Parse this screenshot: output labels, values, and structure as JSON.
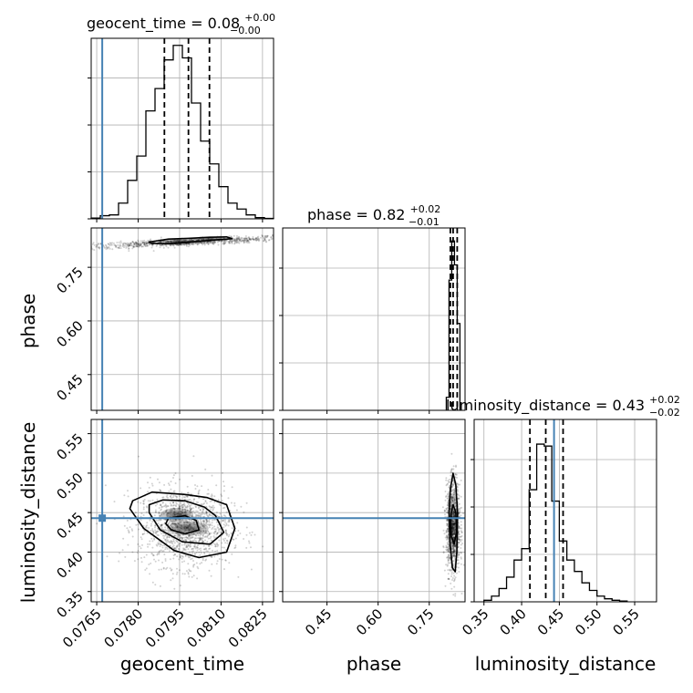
{
  "chart_data": {
    "type": "corner",
    "parameters": [
      "geocent_time",
      "phase",
      "luminosity_distance"
    ],
    "truths": {
      "geocent_time": 0.0767,
      "phase": null,
      "luminosity_distance": 0.443
    },
    "colors": {
      "truth": "#4682b4",
      "hist": "#000000",
      "grid": "#b0b0b0",
      "points": "#000000"
    },
    "diagonal": [
      {
        "parameter": "geocent_time",
        "title": "geocent_time = 0.08",
        "title_sup": "+0.00",
        "title_sub": "−0.00",
        "xlim": [
          0.0763,
          0.0829
        ],
        "bin_edges": [
          0.0763,
          0.07663,
          0.07696,
          0.07729,
          0.07762,
          0.07795,
          0.07828,
          0.07861,
          0.07894,
          0.07927,
          0.0796,
          0.07993,
          0.08026,
          0.08059,
          0.08092,
          0.08125,
          0.08158,
          0.08191,
          0.08224,
          0.08257,
          0.0829
        ],
        "counts": [
          0.2,
          0.8,
          1.0,
          4.0,
          9.8,
          16.0,
          27.5,
          33.2,
          40.5,
          44.2,
          41.0,
          29.5,
          19.8,
          14.0,
          8.2,
          4.0,
          2.5,
          1.0,
          0.3,
          0.1
        ],
        "ylim": [
          0,
          46
        ],
        "quantiles": [
          0.07895,
          0.07982,
          0.08058
        ]
      },
      {
        "parameter": "phase",
        "title": "phase = 0.82",
        "title_sup": "+0.02",
        "title_sub": "−0.01",
        "xlim": [
          0.32,
          0.855
        ],
        "bin_edges": [
          0.8,
          0.808,
          0.816,
          0.824,
          0.832,
          0.84
        ],
        "counts": [
          3.0,
          30.0,
          39.0,
          33.5,
          20.0
        ],
        "ylim": [
          0,
          42
        ],
        "quantiles": [
          0.812,
          0.82,
          0.832
        ]
      },
      {
        "parameter": "luminosity_distance",
        "title": "luminosity_distance = 0.43",
        "title_sup": "+0.02",
        "title_sub": "−0.02",
        "xlim": [
          0.337,
          0.579
        ],
        "bin_edges": [
          0.35,
          0.36,
          0.37,
          0.38,
          0.39,
          0.4,
          0.41,
          0.42,
          0.43,
          0.44,
          0.45,
          0.46,
          0.47,
          0.48,
          0.49,
          0.5,
          0.51,
          0.52,
          0.53,
          0.54
        ],
        "counts": [
          0.4,
          1.5,
          3.5,
          6.5,
          11.0,
          14.0,
          29.5,
          41.5,
          41.0,
          26.5,
          16.0,
          11.0,
          8.0,
          5.0,
          3.0,
          1.5,
          0.8,
          0.4,
          0.2
        ],
        "ylim": [
          0,
          48
        ],
        "quantiles": [
          0.411,
          0.432,
          0.455
        ]
      }
    ],
    "ticks": {
      "geocent_time": [
        0.0765,
        0.078,
        0.0795,
        0.081,
        0.0825
      ],
      "phase": [
        0.45,
        0.6,
        0.75
      ],
      "luminosity_distance_y": [
        0.35,
        0.4,
        0.45,
        0.5,
        0.55
      ],
      "luminosity_distance_x": [
        0.35,
        0.4,
        0.45,
        0.5,
        0.55
      ]
    },
    "tick_labels": {
      "geocent_time": [
        "0.0765",
        "0.0780",
        "0.0795",
        "0.0810",
        "0.0825"
      ],
      "phase_x": [
        "0.45",
        "0.60",
        "0.75"
      ],
      "phase_y": [
        "0.45",
        "0.60",
        "0.75"
      ],
      "luminosity_distance_y": [
        "0.35",
        "0.40",
        "0.45",
        "0.50",
        "0.55"
      ],
      "luminosity_distance_x": [
        "0.35",
        "0.40",
        "0.45",
        "0.50",
        "0.55"
      ]
    },
    "axis_labels": {
      "phase_y": "phase",
      "luminosity_distance_y": "luminosity_distance",
      "geocent_time_x": "geocent_time",
      "phase_x": "phase",
      "luminosity_distance_x": "luminosity_distance"
    },
    "scatter_2d": [
      {
        "x": "geocent_time",
        "y": "phase",
        "xlim": [
          0.0763,
          0.0829
        ],
        "ylim": [
          0.35,
          0.86
        ],
        "center": [
          0.0797,
          0.82
        ],
        "slope": 3.4,
        "spread": 0.0009,
        "perp": 0.005,
        "contours": [
          [
            [
              0.0786,
              0.823
            ],
            [
              0.0791,
              0.829
            ],
            [
              0.0798,
              0.831
            ],
            [
              0.0806,
              0.834
            ],
            [
              0.0812,
              0.835
            ],
            [
              0.0814,
              0.83
            ],
            [
              0.0807,
              0.826
            ],
            [
              0.0798,
              0.82
            ],
            [
              0.0791,
              0.816
            ],
            [
              0.0785,
              0.817
            ],
            [
              0.0784,
              0.821
            ]
          ]
        ],
        "dense": [
          [
            0.0795,
            0.821,
            0.0005,
            0.006
          ],
          [
            0.0806,
            0.829,
            0.0004,
            0.005
          ]
        ]
      },
      {
        "x": "geocent_time",
        "y": "luminosity_distance",
        "xlim": [
          0.0763,
          0.0829
        ],
        "ylim": [
          0.337,
          0.568
        ],
        "center": [
          0.0797,
          0.432
        ],
        "spread": 0.00085,
        "yspread": 0.025,
        "truth_point": [
          0.0767,
          0.443
        ],
        "contours": [
          [
            [
              0.0784,
              0.46
            ],
            [
              0.0789,
              0.466
            ],
            [
              0.0797,
              0.465
            ],
            [
              0.0804,
              0.457
            ],
            [
              0.0808,
              0.446
            ],
            [
              0.0811,
              0.425
            ],
            [
              0.0806,
              0.41
            ],
            [
              0.0796,
              0.413
            ],
            [
              0.0788,
              0.428
            ],
            [
              0.0784,
              0.45
            ]
          ],
          [
            [
              0.0778,
              0.465
            ],
            [
              0.0785,
              0.476
            ],
            [
              0.0797,
              0.473
            ],
            [
              0.0805,
              0.469
            ],
            [
              0.0812,
              0.46
            ],
            [
              0.0815,
              0.43
            ],
            [
              0.0812,
              0.4
            ],
            [
              0.0802,
              0.393
            ],
            [
              0.0793,
              0.402
            ],
            [
              0.0782,
              0.43
            ],
            [
              0.0777,
              0.455
            ]
          ],
          [
            [
              0.0791,
              0.443
            ],
            [
              0.0797,
              0.446
            ],
            [
              0.0801,
              0.44
            ],
            [
              0.0802,
              0.428
            ],
            [
              0.0797,
              0.423
            ],
            [
              0.0792,
              0.428
            ],
            [
              0.079,
              0.436
            ]
          ]
        ],
        "dense": [
          [
            0.0798,
            0.43,
            0.0005,
            0.006
          ],
          [
            0.0794,
            0.447,
            0.0004,
            0.006
          ]
        ]
      },
      {
        "x": "phase",
        "y": "luminosity_distance",
        "xlim": [
          0.32,
          0.855
        ],
        "ylim": [
          0.337,
          0.568
        ],
        "center": [
          0.82,
          0.432
        ],
        "spread": 0.01,
        "yspread": 0.028,
        "contours": [
          [
            [
              0.812,
              0.48
            ],
            [
              0.82,
              0.5
            ],
            [
              0.828,
              0.485
            ],
            [
              0.833,
              0.45
            ],
            [
              0.831,
              0.4
            ],
            [
              0.826,
              0.375
            ],
            [
              0.818,
              0.38
            ],
            [
              0.811,
              0.41
            ],
            [
              0.808,
              0.45
            ]
          ],
          [
            [
              0.815,
              0.45
            ],
            [
              0.82,
              0.46
            ],
            [
              0.828,
              0.45
            ],
            [
              0.83,
              0.425
            ],
            [
              0.823,
              0.41
            ],
            [
              0.815,
              0.42
            ],
            [
              0.812,
              0.435
            ]
          ]
        ],
        "dense": [
          [
            0.817,
            0.432,
            0.004,
            0.008
          ]
        ]
      }
    ]
  }
}
